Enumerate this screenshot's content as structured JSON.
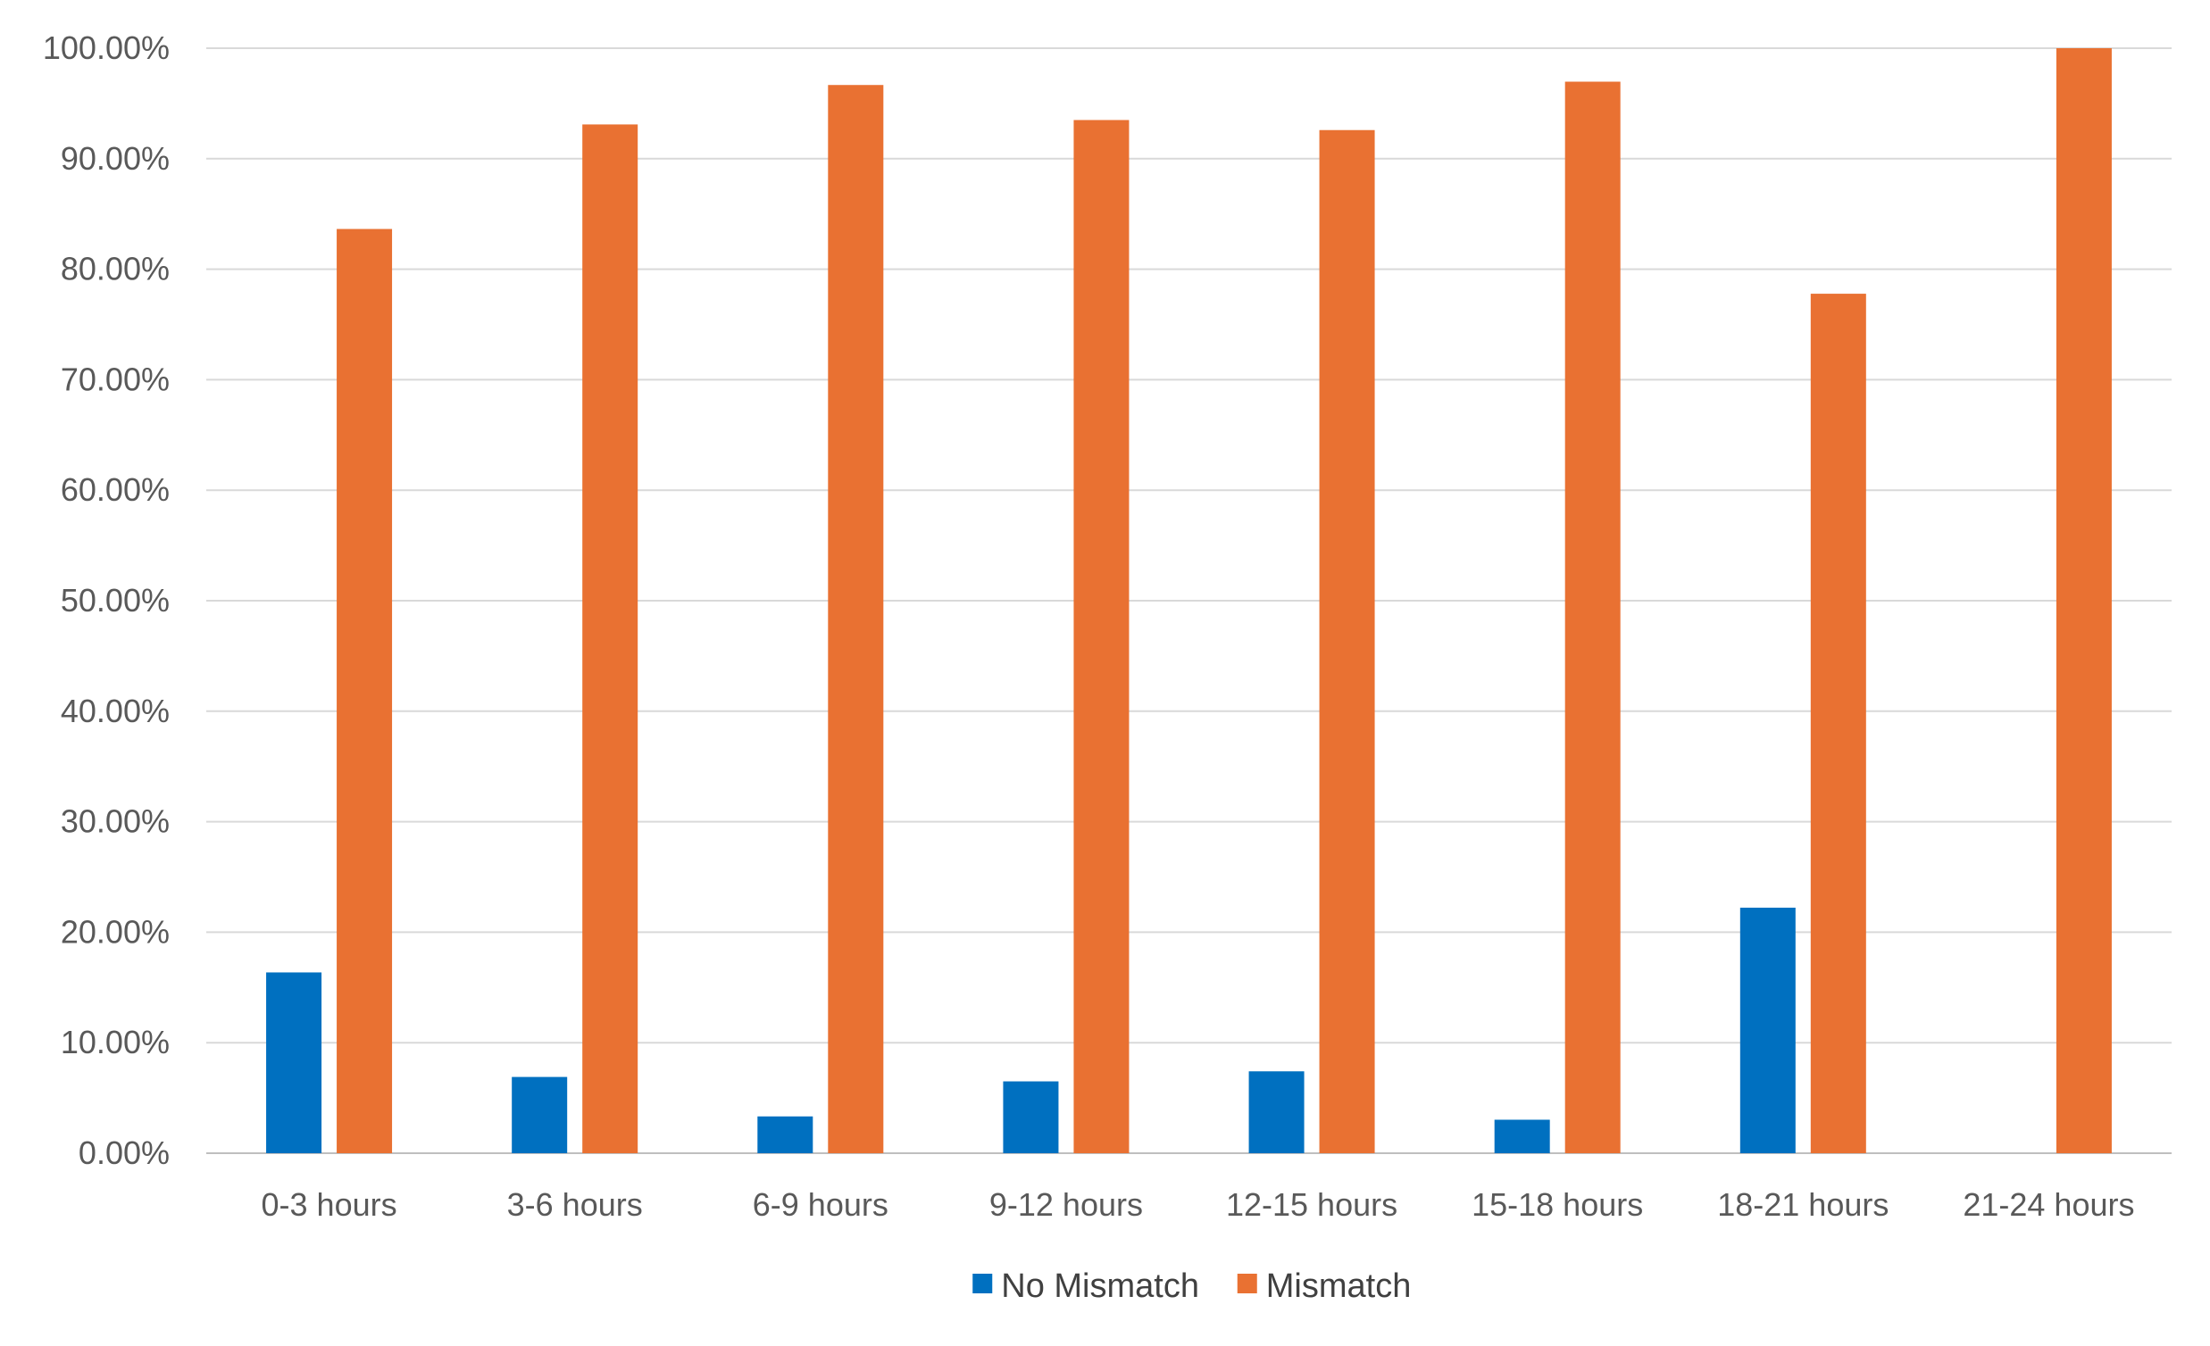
{
  "chart_data": {
    "type": "bar",
    "title": "",
    "xlabel": "",
    "ylabel": "",
    "categories": [
      "0-3 hours",
      "3-6 hours",
      "6-9 hours",
      "9-12 hours",
      "12-15 hours",
      "15-18 hours",
      "18-21 hours",
      "21-24 hours"
    ],
    "series": [
      {
        "name": "No Mismatch",
        "color": "#0070C0",
        "values": [
          16.36,
          6.9,
          3.33,
          6.5,
          7.41,
          3.03,
          22.22,
          0.0
        ]
      },
      {
        "name": "Mismatch",
        "color": "#E97132",
        "values": [
          83.64,
          93.1,
          96.67,
          93.5,
          92.59,
          96.97,
          77.78,
          100.0
        ]
      }
    ],
    "ylim": [
      0,
      100
    ],
    "yticks": [
      "0.00%",
      "10.00%",
      "20.00%",
      "30.00%",
      "40.00%",
      "50.00%",
      "60.00%",
      "70.00%",
      "80.00%",
      "90.00%",
      "100.00%"
    ],
    "grid": true,
    "legend_position": "bottom"
  }
}
